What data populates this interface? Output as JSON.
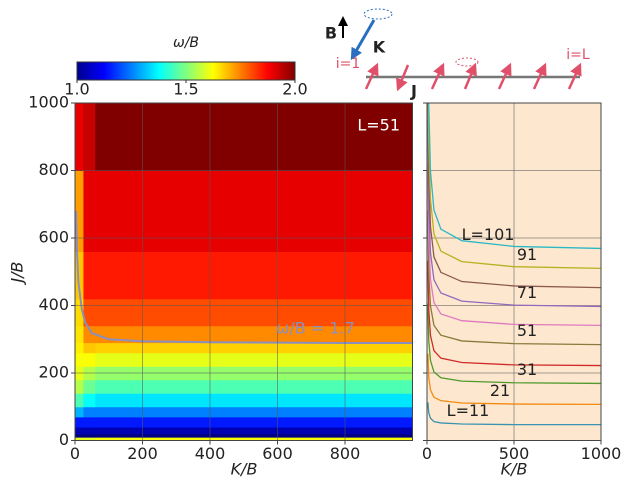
{
  "chart_data": [
    {
      "type": "heatmap",
      "xlabel": "K/B",
      "ylabel": "J/B",
      "annotation": "L=51",
      "xlim": [
        0,
        1000
      ],
      "xticks": [
        0,
        200,
        400,
        600,
        800
      ],
      "ylim": [
        0,
        1000
      ],
      "yticks": [
        0,
        200,
        400,
        600,
        800,
        1000
      ],
      "grid": true,
      "x_edges": [
        0,
        25,
        60,
        1000
      ],
      "y_edges": [
        0,
        10,
        20,
        40,
        70,
        100,
        140,
        180,
        220,
        260,
        290,
        340,
        420,
        560,
        800,
        1000
      ],
      "z": [
        [
          1.6,
          1.6,
          1.62
        ],
        [
          1.0,
          1.0,
          1.0
        ],
        [
          1.05,
          1.05,
          1.05
        ],
        [
          1.15,
          1.15,
          1.15
        ],
        [
          1.3,
          1.25,
          1.25
        ],
        [
          1.45,
          1.38,
          1.35
        ],
        [
          1.55,
          1.48,
          1.45
        ],
        [
          1.6,
          1.55,
          1.52
        ],
        [
          1.62,
          1.62,
          1.6
        ],
        [
          1.64,
          1.68,
          1.67
        ],
        [
          1.65,
          1.74,
          1.74
        ],
        [
          1.66,
          1.8,
          1.8
        ],
        [
          1.68,
          1.85,
          1.85
        ],
        [
          1.72,
          1.9,
          1.9
        ],
        [
          1.9,
          1.93,
          2.0
        ]
      ],
      "colorbar": {
        "label": "ω/B",
        "lim": [
          1.0,
          2.0
        ],
        "ticks": [
          {
            "value": 1.0,
            "label": "1.0"
          },
          1.5,
          {
            "value": 2.0,
            "label": "2.0"
          }
        ]
      },
      "contour": {
        "label": "ω/B = 1.7",
        "color": "#8a8fc0",
        "x": [
          3,
          6,
          10,
          20,
          30,
          50,
          100,
          200,
          400,
          600,
          800,
          1000
        ],
        "y": [
          680,
          560,
          470,
          390,
          350,
          318,
          300,
          294,
          291,
          290,
          289,
          289
        ]
      }
    },
    {
      "type": "line",
      "xlabel": "K/B",
      "xlim": [
        0,
        1000
      ],
      "xticks": [
        0,
        500,
        1000
      ],
      "ylim": [
        0,
        1000
      ],
      "yticks": [
        0,
        200,
        400,
        600,
        800,
        1000
      ],
      "ytick_labels": false,
      "grid": true,
      "background": "#fde7cf",
      "x": [
        5,
        10,
        20,
        40,
        80,
        200,
        500,
        1000
      ],
      "series": [
        {
          "name": "L=11",
          "color": "#3a93b0",
          "values": [
            113,
            82,
            66,
            56,
            52,
            49,
            47,
            47
          ]
        },
        {
          "name": "21",
          "color": "#f28a10",
          "values": [
            257,
            187,
            150,
            128,
            118,
            111,
            108,
            107
          ]
        },
        {
          "name": "31",
          "color": "#4f9a2c",
          "values": [
            406,
            296,
            237,
            203,
            186,
            176,
            171,
            169
          ]
        },
        {
          "color": "#d02a28",
          "values": [
            533,
            389,
            311,
            266,
            244,
            231,
            224,
            222
          ]
        },
        {
          "name": "51",
          "color": "#8a7a3a",
          "values": [
            682,
            497,
            398,
            341,
            312,
            295,
            287,
            284
          ]
        },
        {
          "color": "#e07ac0",
          "values": [
            818,
            597,
            477,
            409,
            375,
            355,
            344,
            341
          ]
        },
        {
          "name": "71",
          "color": "#9468bd",
          "values": [
            953,
            695,
            556,
            476,
            437,
            413,
            401,
            397
          ]
        },
        {
          "color": "#8c5a4b",
          "values": [
            1087,
            793,
            634,
            544,
            498,
            471,
            458,
            453
          ]
        },
        {
          "name": "91",
          "color": "#b8b020",
          "values": [
            1224,
            893,
            714,
            612,
            561,
            530,
            515,
            510
          ]
        },
        {
          "name": "L=101",
          "color": "#2bb8c4",
          "values": [
            1366,
            996,
            797,
            683,
            626,
            592,
            575,
            569
          ]
        }
      ]
    }
  ],
  "schematic": {
    "field": "B",
    "anisotropy": "K",
    "coupling": "J",
    "first_site": "i=1",
    "last_site": "i=L"
  }
}
